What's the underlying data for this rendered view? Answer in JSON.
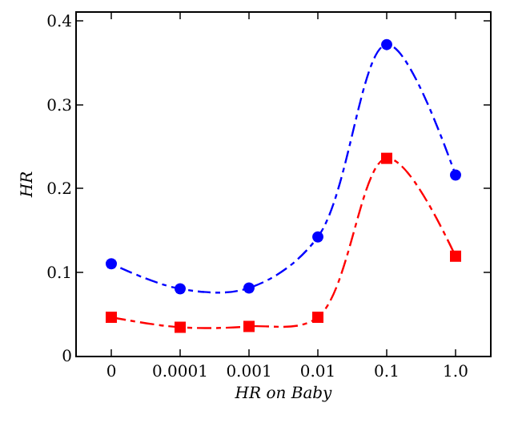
{
  "chart_data": {
    "type": "line",
    "xlabel": "HR on Baby",
    "ylabel": "HR",
    "categories": [
      "0",
      "0.0001",
      "0.001",
      "0.01",
      "0.1",
      "1.0"
    ],
    "series": [
      {
        "color": "#0000ff",
        "marker": "circle",
        "line_style": "dotted",
        "values": [
          0.11,
          0.08,
          0.081,
          0.142,
          0.372,
          0.216
        ]
      },
      {
        "color": "#ff0000",
        "marker": "square",
        "line_style": "dashed",
        "values": [
          0.046,
          0.034,
          0.035,
          0.046,
          0.236,
          0.119
        ]
      }
    ],
    "ylim": [
      0,
      0.41
    ],
    "yticks": [
      0,
      0.1,
      0.2,
      0.3,
      0.4
    ],
    "grid": false
  }
}
